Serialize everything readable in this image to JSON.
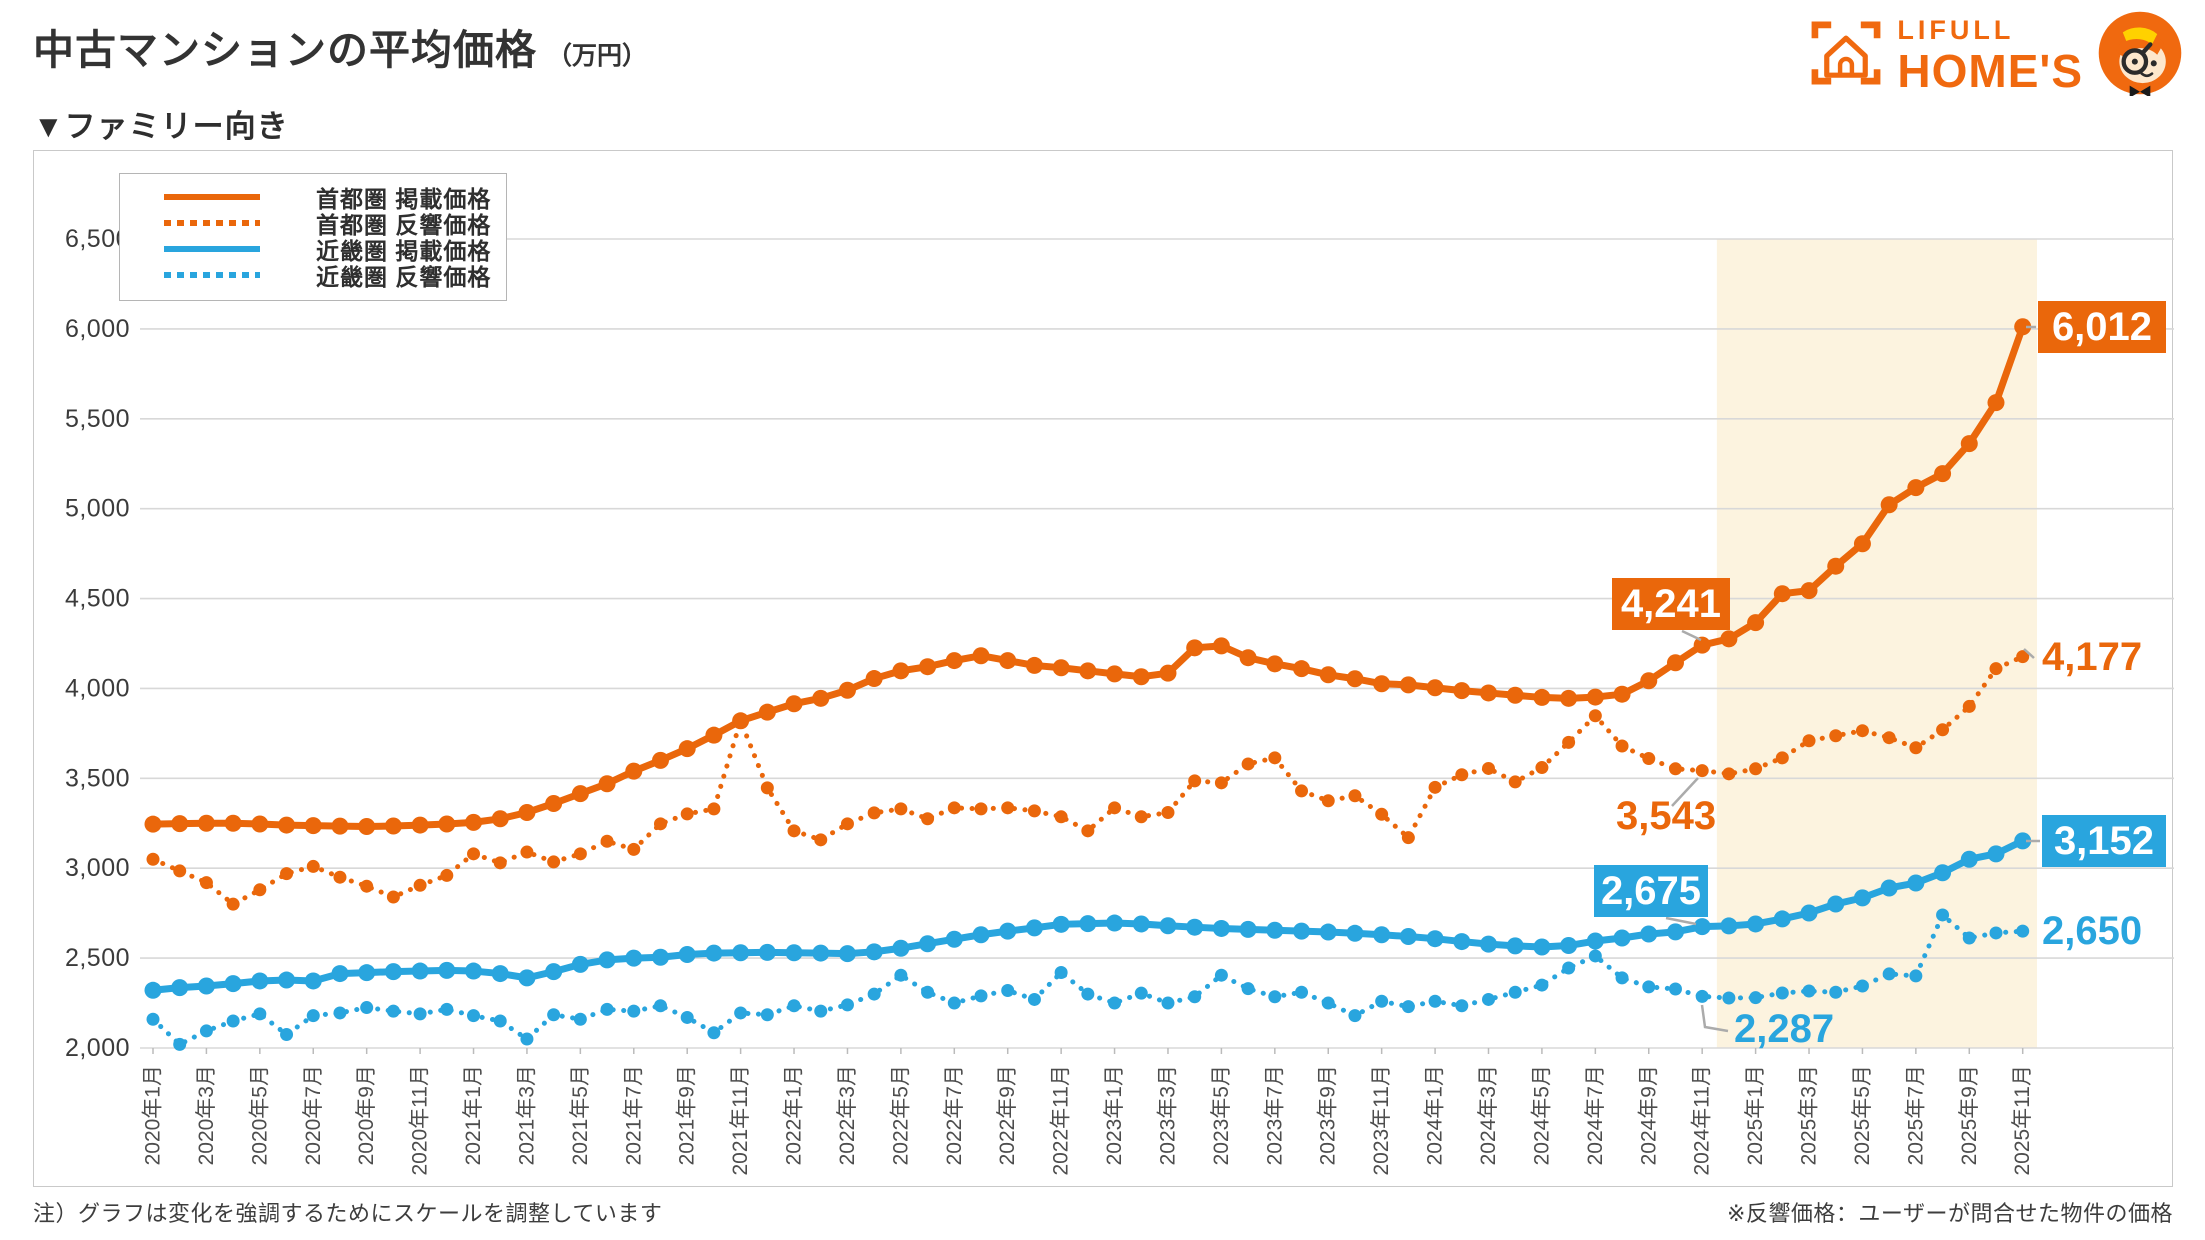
{
  "header": {
    "title": "中古マンションの平均価格",
    "title_unit": "（万円）",
    "subtitle": "▼ファミリー向き"
  },
  "logo": {
    "brand_top": "LIFULL",
    "brand_bottom": "HOME'S"
  },
  "footnotes": {
    "left": "注）グラフは変化を強調するためにスケールを調整しています",
    "right": "※反響価格：ユーザーが問合せた物件の価格"
  },
  "colors": {
    "orange": "#EA670B",
    "blue": "#29A5DE",
    "highlight": "#FCF3DF",
    "grid": "#D8D8D8",
    "leader": "#ABABAB",
    "axis_text": "#3b3b3b"
  },
  "chart_data": {
    "type": "line",
    "title": "中古マンションの平均価格（万円） ファミリー向き",
    "ylim": [
      2000,
      6500
    ],
    "ytick_step": 500,
    "grid": true,
    "legend_position": "top-left",
    "x_tick_every": 2,
    "months": [
      "2020年1月",
      "2020年2月",
      "2020年3月",
      "2020年4月",
      "2020年5月",
      "2020年6月",
      "2020年7月",
      "2020年8月",
      "2020年9月",
      "2020年10月",
      "2020年11月",
      "2020年12月",
      "2021年1月",
      "2021年2月",
      "2021年3月",
      "2021年4月",
      "2021年5月",
      "2021年6月",
      "2021年7月",
      "2021年8月",
      "2021年9月",
      "2021年10月",
      "2021年11月",
      "2021年12月",
      "2022年1月",
      "2022年2月",
      "2022年3月",
      "2022年4月",
      "2022年5月",
      "2022年6月",
      "2022年7月",
      "2022年8月",
      "2022年9月",
      "2022年10月",
      "2022年11月",
      "2022年12月",
      "2023年1月",
      "2023年2月",
      "2023年3月",
      "2023年4月",
      "2023年5月",
      "2023年6月",
      "2023年7月",
      "2023年8月",
      "2023年9月",
      "2023年10月",
      "2023年11月",
      "2023年12月",
      "2024年1月",
      "2024年2月",
      "2024年3月",
      "2024年4月",
      "2024年5月",
      "2024年6月",
      "2024年7月",
      "2024年8月",
      "2024年9月",
      "2024年10月",
      "2024年11月",
      "2024年12月",
      "2025年1月",
      "2025年2月",
      "2025年3月",
      "2025年4月",
      "2025年5月",
      "2025年6月",
      "2025年7月",
      "2025年8月",
      "2025年9月",
      "2025年10月",
      "2025年11月"
    ],
    "series": [
      {
        "name": "首都圏 掲載価格",
        "style": "solid",
        "color": "#EA670B",
        "values": [
          3245,
          3248,
          3250,
          3250,
          3246,
          3240,
          3237,
          3234,
          3232,
          3235,
          3240,
          3246,
          3255,
          3275,
          3310,
          3360,
          3415,
          3470,
          3540,
          3600,
          3665,
          3740,
          3820,
          3868,
          3915,
          3945,
          3990,
          4055,
          4098,
          4121,
          4155,
          4182,
          4155,
          4128,
          4115,
          4098,
          4081,
          4065,
          4085,
          4226,
          4237,
          4171,
          4137,
          4110,
          4076,
          4054,
          4026,
          4020,
          4004,
          3988,
          3975,
          3962,
          3950,
          3945,
          3952,
          3968,
          4043,
          4143,
          4241,
          4276,
          4366,
          4527,
          4544,
          4680,
          4805,
          5022,
          5117,
          5195,
          5362,
          5590,
          6012
        ]
      },
      {
        "name": "首都圏 反響価格",
        "style": "dotted",
        "color": "#EA670B",
        "values": [
          3050,
          2985,
          2920,
          2800,
          2880,
          2970,
          3010,
          2950,
          2900,
          2840,
          2905,
          2960,
          3080,
          3030,
          3090,
          3035,
          3080,
          3150,
          3105,
          3247,
          3302,
          3330,
          3820,
          3447,
          3208,
          3158,
          3247,
          3308,
          3330,
          3275,
          3336,
          3330,
          3336,
          3319,
          3286,
          3208,
          3336,
          3286,
          3310,
          3486,
          3475,
          3580,
          3614,
          3430,
          3375,
          3403,
          3300,
          3170,
          3450,
          3520,
          3555,
          3480,
          3560,
          3700,
          3848,
          3680,
          3610,
          3553,
          3543,
          3525,
          3553,
          3614,
          3709,
          3737,
          3765,
          3726,
          3670,
          3770,
          3900,
          4110,
          4177
        ]
      },
      {
        "name": "近畿圏 掲載価格",
        "style": "solid",
        "color": "#29A5DE",
        "values": [
          2321,
          2336,
          2345,
          2358,
          2373,
          2378,
          2373,
          2414,
          2419,
          2425,
          2428,
          2432,
          2428,
          2414,
          2390,
          2425,
          2465,
          2490,
          2500,
          2505,
          2520,
          2528,
          2530,
          2532,
          2530,
          2528,
          2525,
          2535,
          2555,
          2580,
          2605,
          2630,
          2650,
          2668,
          2688,
          2692,
          2695,
          2690,
          2680,
          2672,
          2665,
          2660,
          2655,
          2650,
          2645,
          2638,
          2630,
          2620,
          2608,
          2592,
          2578,
          2568,
          2562,
          2570,
          2595,
          2612,
          2634,
          2646,
          2675,
          2679,
          2690,
          2718,
          2751,
          2801,
          2835,
          2890,
          2918,
          2975,
          3050,
          3080,
          3152
        ]
      },
      {
        "name": "近畿圏 反響価格",
        "style": "dotted",
        "color": "#29A5DE",
        "values": [
          2160,
          2020,
          2095,
          2150,
          2190,
          2075,
          2180,
          2195,
          2225,
          2205,
          2190,
          2215,
          2180,
          2150,
          2050,
          2185,
          2160,
          2215,
          2205,
          2235,
          2170,
          2085,
          2195,
          2185,
          2235,
          2205,
          2240,
          2300,
          2405,
          2310,
          2250,
          2290,
          2320,
          2270,
          2420,
          2300,
          2250,
          2305,
          2250,
          2285,
          2405,
          2330,
          2285,
          2310,
          2250,
          2180,
          2260,
          2230,
          2260,
          2235,
          2270,
          2310,
          2350,
          2445,
          2512,
          2390,
          2340,
          2328,
          2287,
          2278,
          2280,
          2306,
          2317,
          2310,
          2345,
          2412,
          2401,
          2740,
          2612,
          2640,
          2650
        ]
      }
    ],
    "highlight_range": {
      "from": "2024年12月",
      "to": "2025年11月"
    },
    "annotations": [
      {
        "series": 0,
        "month": "2024年11月",
        "label": "4,241",
        "kind": "box"
      },
      {
        "series": 0,
        "month": "2025年11月",
        "label": "6,012",
        "kind": "box"
      },
      {
        "series": 1,
        "month": "2024年11月",
        "label": "3,543",
        "kind": "text"
      },
      {
        "series": 1,
        "month": "2025年11月",
        "label": "4,177",
        "kind": "text"
      },
      {
        "series": 2,
        "month": "2024年11月",
        "label": "2,675",
        "kind": "box"
      },
      {
        "series": 2,
        "month": "2025年11月",
        "label": "3,152",
        "kind": "box"
      },
      {
        "series": 3,
        "month": "2024年11月",
        "label": "2,287",
        "kind": "text"
      },
      {
        "series": 3,
        "month": "2025年11月",
        "label": "2,650",
        "kind": "text"
      }
    ]
  }
}
